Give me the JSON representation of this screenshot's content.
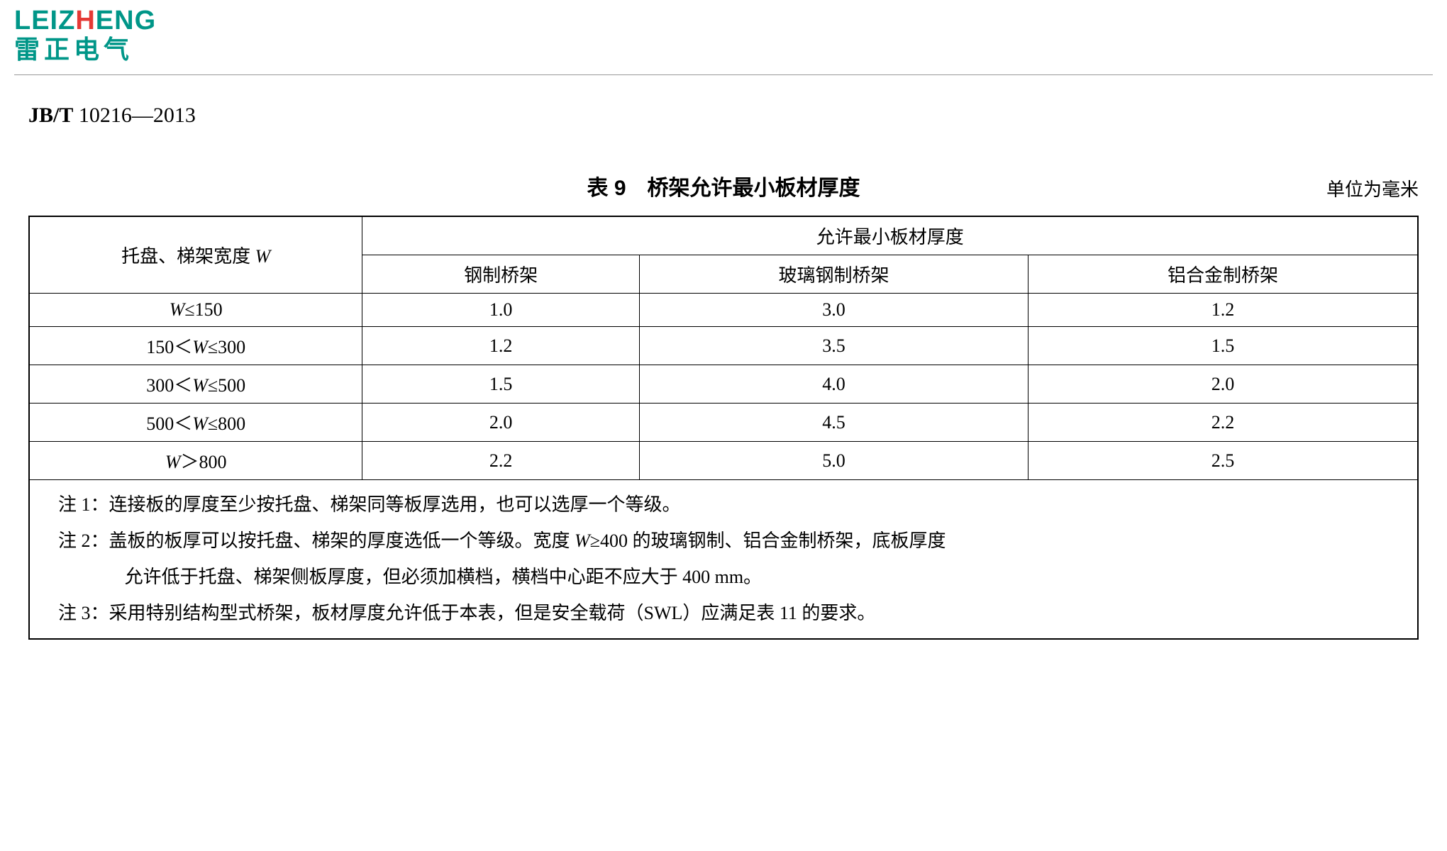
{
  "logo": {
    "en_pre": "LEIZ",
    "en_mid": "H",
    "en_post": "ENG",
    "cn": "雷正电气"
  },
  "standard": {
    "prefix": "JB/T",
    "code": "10216—2013"
  },
  "table": {
    "title": "表 9　桥架允许最小板材厚度",
    "unit": "单位为毫米",
    "header_main_col": "托盘、梯架宽度 ",
    "header_main_col_var": "W",
    "header_group": "允许最小板材厚度",
    "sub_headers": [
      "钢制桥架",
      "玻璃钢制桥架",
      "铝合金制桥架"
    ],
    "rows": [
      {
        "w_pre": "",
        "w_var": "W",
        "w_post": "≤150",
        "v1": "1.0",
        "v2": "3.0",
        "v3": "1.2"
      },
      {
        "w_pre": "150＜",
        "w_var": "W",
        "w_post": "≤300",
        "v1": "1.2",
        "v2": "3.5",
        "v3": "1.5"
      },
      {
        "w_pre": "300＜",
        "w_var": "W",
        "w_post": "≤500",
        "v1": "1.5",
        "v2": "4.0",
        "v3": "2.0"
      },
      {
        "w_pre": "500＜",
        "w_var": "W",
        "w_post": "≤800",
        "v1": "2.0",
        "v2": "4.5",
        "v3": "2.2"
      },
      {
        "w_pre": "",
        "w_var": "W",
        "w_post": "＞800",
        "v1": "2.2",
        "v2": "5.0",
        "v3": "2.5"
      }
    ],
    "notes": {
      "n1": "注 1：连接板的厚度至少按托盘、梯架同等板厚选用，也可以选厚一个等级。",
      "n2a": "注 2：盖板的板厚可以按托盘、梯架的厚度选低一个等级。宽度 ",
      "n2_var": "W",
      "n2b": "≥400 的玻璃钢制、铝合金制桥架，底板厚度",
      "n2c": "允许低于托盘、梯架侧板厚度，但必须加横档，横档中心距不应大于 400 mm。",
      "n3": "注 3：采用特别结构型式桥架，板材厚度允许低于本表，但是安全载荷（SWL）应满足表 11 的要求。"
    }
  },
  "style": {
    "brand_color": "#009688",
    "accent_color": "#e53935",
    "border_color": "#000000",
    "background": "#ffffff"
  }
}
